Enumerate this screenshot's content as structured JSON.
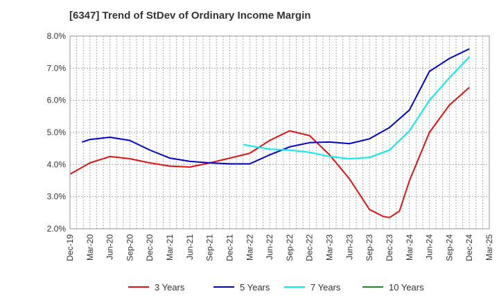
{
  "title": "[6347]  Trend of StDev of Ordinary Income Margin",
  "chart_data": {
    "type": "line",
    "title": "[6347]  Trend of StDev of Ordinary Income Margin",
    "xlabel": "",
    "ylabel": "",
    "ylim": [
      2.0,
      8.0
    ],
    "y_ticks": [
      "2.0%",
      "3.0%",
      "4.0%",
      "5.0%",
      "6.0%",
      "7.0%",
      "8.0%"
    ],
    "x_ticks": [
      "Dec-19",
      "Mar-20",
      "Jun-20",
      "Sep-20",
      "Dec-20",
      "Mar-21",
      "Jun-21",
      "Sep-21",
      "Dec-21",
      "Mar-22",
      "Jun-22",
      "Sep-22",
      "Dec-22",
      "Mar-23",
      "Jun-23",
      "Sep-23",
      "Dec-23",
      "Mar-24",
      "Jun-24",
      "Sep-24",
      "Dec-24",
      "Mar-25"
    ],
    "grid": true,
    "legend_position": "bottom",
    "series": [
      {
        "name": "3 Years",
        "color": "#dd1111",
        "points": [
          [
            0,
            3.7
          ],
          [
            1,
            4.05
          ],
          [
            2,
            4.25
          ],
          [
            3,
            4.18
          ],
          [
            4,
            4.05
          ],
          [
            5,
            3.95
          ],
          [
            6,
            3.92
          ],
          [
            7,
            4.05
          ],
          [
            8,
            4.2
          ],
          [
            9,
            4.35
          ],
          [
            10,
            4.75
          ],
          [
            11,
            5.05
          ],
          [
            12,
            4.9
          ],
          [
            13,
            4.3
          ],
          [
            14,
            3.55
          ],
          [
            15,
            2.6
          ],
          [
            15.7,
            2.38
          ],
          [
            16,
            2.35
          ],
          [
            16.5,
            2.55
          ],
          [
            17,
            3.5
          ],
          [
            18,
            5.0
          ],
          [
            19,
            5.85
          ],
          [
            20,
            6.4
          ]
        ]
      },
      {
        "name": "5 Years",
        "color": "#0000cc",
        "points": [
          [
            0.6,
            4.7
          ],
          [
            1,
            4.78
          ],
          [
            2,
            4.85
          ],
          [
            3,
            4.75
          ],
          [
            4,
            4.45
          ],
          [
            5,
            4.2
          ],
          [
            6,
            4.1
          ],
          [
            7,
            4.05
          ],
          [
            8,
            4.02
          ],
          [
            9,
            4.02
          ],
          [
            10,
            4.3
          ],
          [
            11,
            4.55
          ],
          [
            12,
            4.68
          ],
          [
            13,
            4.7
          ],
          [
            14,
            4.65
          ],
          [
            15,
            4.8
          ],
          [
            16,
            5.15
          ],
          [
            17,
            5.7
          ],
          [
            18,
            6.9
          ],
          [
            19,
            7.3
          ],
          [
            20,
            7.6
          ]
        ]
      },
      {
        "name": "7 Years",
        "color": "#00eeee",
        "points": [
          [
            8.7,
            4.62
          ],
          [
            9.3,
            4.55
          ],
          [
            10,
            4.48
          ],
          [
            11,
            4.45
          ],
          [
            12,
            4.38
          ],
          [
            13,
            4.25
          ],
          [
            14,
            4.18
          ],
          [
            15,
            4.22
          ],
          [
            16,
            4.45
          ],
          [
            17,
            5.05
          ],
          [
            18,
            6.0
          ],
          [
            19,
            6.7
          ],
          [
            20,
            7.35
          ]
        ]
      },
      {
        "name": "10 Years",
        "color": "#228822",
        "points": []
      }
    ]
  }
}
